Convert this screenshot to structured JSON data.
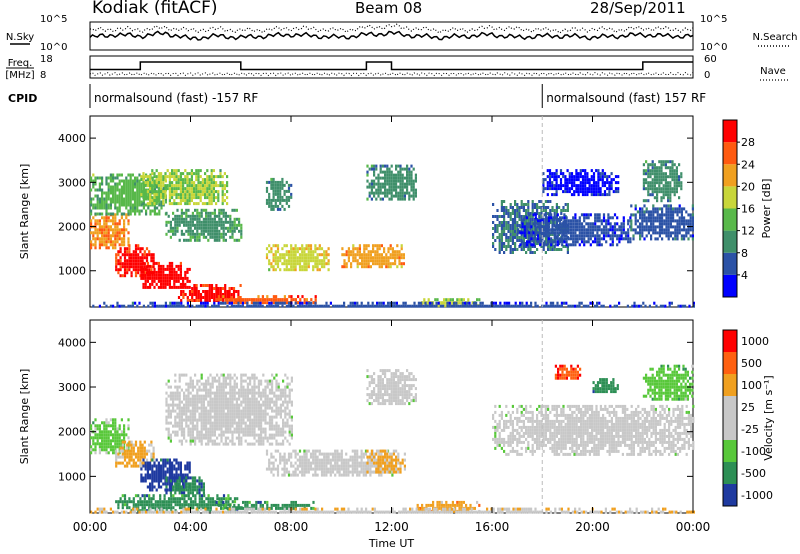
{
  "header": {
    "station": "Kodiak (fitACF)",
    "beam": "Beam 08",
    "date": "28/Sep/2011"
  },
  "colors": {
    "power": [
      "#0000ff",
      "#2b52a6",
      "#3f8f6a",
      "#58b84a",
      "#c8d63a",
      "#f0a020",
      "#ff5a10",
      "#ff0000"
    ],
    "velocity": [
      "#1f3aa0",
      "#2d8f55",
      "#58c83a",
      "#c8c8c8",
      "#c8c8c8",
      "#f0a020",
      "#ff6010",
      "#ff0000"
    ]
  },
  "chart_data": [
    {
      "type": "line",
      "name": "N.Sky / N.Search panel",
      "ylabel_left": "N.Sky",
      "ylabel_right": "N.Search",
      "yticks_left": [
        "10^5",
        "10^0"
      ],
      "yticks_right": [
        "10^5",
        "10^0"
      ],
      "x_hours": [
        0,
        1,
        2,
        3,
        4,
        5,
        6,
        7,
        8,
        9,
        10,
        11,
        12,
        13,
        14,
        15,
        16,
        17,
        18,
        19,
        20,
        21,
        22,
        23,
        24
      ],
      "series": [
        {
          "name": "N.Sky",
          "style": "solid",
          "values": [
            0.45,
            0.55,
            0.5,
            0.6,
            0.4,
            0.5,
            0.45,
            0.5,
            0.55,
            0.5,
            0.45,
            0.55,
            0.6,
            0.5,
            0.45,
            0.5,
            0.55,
            0.45,
            0.5,
            0.5,
            0.45,
            0.5,
            0.55,
            0.5,
            0.5
          ]
        },
        {
          "name": "N.Search",
          "style": "dotted",
          "values": [
            0.7,
            0.75,
            0.72,
            0.8,
            0.7,
            0.75,
            0.7,
            0.72,
            0.78,
            0.75,
            0.7,
            0.8,
            0.85,
            0.75,
            0.7,
            0.72,
            0.8,
            0.75,
            0.72,
            0.7,
            0.75,
            0.72,
            0.78,
            0.75,
            0.72
          ]
        }
      ]
    },
    {
      "type": "line",
      "name": "Freq / Nave panel",
      "ylabel_left": "Freq. [MHz]",
      "ylabel_right": "Nave",
      "yticks_left": [
        "18",
        "8"
      ],
      "yticks_right": [
        "60",
        "0"
      ],
      "ylim_freq": [
        8,
        18
      ],
      "x_hours": [
        0,
        1,
        2,
        3,
        4,
        5,
        6,
        7,
        8,
        9,
        10,
        11,
        12,
        13,
        14,
        15,
        16,
        17,
        18,
        19,
        20,
        21,
        22,
        23,
        24
      ],
      "series": [
        {
          "name": "Freq",
          "style": "solid",
          "values": [
            12,
            12,
            16,
            16,
            16,
            16,
            12,
            12,
            12,
            12,
            12,
            16,
            12,
            12,
            12,
            12,
            12,
            12,
            12,
            12,
            12,
            12,
            16,
            16,
            16
          ]
        },
        {
          "name": "Nave",
          "style": "dotted",
          "values": [
            8,
            8.5,
            8,
            8.5,
            8,
            8.5,
            8,
            8.5,
            8,
            8.5,
            8,
            8.5,
            8,
            8.5,
            8,
            8.5,
            8,
            8.5,
            8,
            8.5,
            8,
            8.5,
            8,
            8.5,
            8
          ]
        }
      ]
    },
    {
      "type": "heatmap",
      "name": "CPID",
      "label": "CPID",
      "segments": [
        {
          "label": "normalsound (fast) -157 RF",
          "start_hour": 0,
          "end_hour": 18
        },
        {
          "label": "normalsound (fast) 157 RF",
          "start_hour": 18,
          "end_hour": 24
        }
      ]
    },
    {
      "type": "heatmap",
      "name": "Power",
      "ylabel": "Slant Range [km]",
      "yticks": [
        1000,
        2000,
        3000,
        4000
      ],
      "ylim": [
        180,
        4500
      ],
      "colorbar_label": "Power [dB]",
      "colorbar_ticks": [
        4,
        8,
        12,
        16,
        20,
        24,
        28
      ],
      "colorbar_range": [
        0,
        32
      ],
      "blobs": [
        {
          "t0": 0.0,
          "t1": 1.5,
          "r0": 1500,
          "r1": 2300,
          "level": 0.75
        },
        {
          "t0": 1.0,
          "t1": 2.5,
          "r0": 900,
          "r1": 1600,
          "level": 0.9
        },
        {
          "t0": 2.0,
          "t1": 4.0,
          "r0": 600,
          "r1": 1200,
          "level": 0.95
        },
        {
          "t0": 3.5,
          "t1": 6.0,
          "r0": 300,
          "r1": 700,
          "level": 0.9
        },
        {
          "t0": 5.0,
          "t1": 9.0,
          "r0": 250,
          "r1": 450,
          "level": 0.8
        },
        {
          "t0": 0.0,
          "t1": 3.0,
          "r0": 2300,
          "r1": 3200,
          "level": 0.4
        },
        {
          "t0": 2.0,
          "t1": 5.5,
          "r0": 2500,
          "r1": 3300,
          "level": 0.5
        },
        {
          "t0": 3.0,
          "t1": 6.0,
          "r0": 1700,
          "r1": 2400,
          "level": 0.35
        },
        {
          "t0": 7.0,
          "t1": 9.5,
          "r0": 1000,
          "r1": 1600,
          "level": 0.6
        },
        {
          "t0": 10.0,
          "t1": 12.5,
          "r0": 1100,
          "r1": 1600,
          "level": 0.7
        },
        {
          "t0": 11.0,
          "t1": 13.0,
          "r0": 2600,
          "r1": 3400,
          "level": 0.3
        },
        {
          "t0": 7.0,
          "t1": 8.0,
          "r0": 2400,
          "r1": 3100,
          "level": 0.3
        },
        {
          "t0": 13.0,
          "t1": 15.5,
          "r0": 220,
          "r1": 380,
          "level": 0.55
        },
        {
          "t0": 16.0,
          "t1": 19.0,
          "r0": 1400,
          "r1": 2600,
          "level": 0.25
        },
        {
          "t0": 17.0,
          "t1": 21.5,
          "r0": 1600,
          "r1": 2300,
          "level": 0.15
        },
        {
          "t0": 18.0,
          "t1": 21.0,
          "r0": 2700,
          "r1": 3300,
          "level": 0.1
        },
        {
          "t0": 21.5,
          "t1": 24.0,
          "r0": 1700,
          "r1": 2500,
          "level": 0.2
        },
        {
          "t0": 22.0,
          "t1": 23.5,
          "r0": 2600,
          "r1": 3500,
          "level": 0.3
        },
        {
          "t0": 0.0,
          "t1": 24.0,
          "r0": 180,
          "r1": 300,
          "level": 0.15
        }
      ]
    },
    {
      "type": "heatmap",
      "name": "Velocity",
      "ylabel": "Slant Range [km]",
      "yticks": [
        1000,
        2000,
        3000,
        4000
      ],
      "ylim": [
        180,
        4500
      ],
      "colorbar_label": "Velocity [m s^-1]",
      "colorbar_ticks": [
        1000,
        500,
        100,
        25,
        -25,
        -100,
        -500,
        -1000
      ],
      "blobs": [
        {
          "t0": 0.0,
          "t1": 1.5,
          "r0": 1500,
          "r1": 2300,
          "level": 0.35
        },
        {
          "t0": 1.0,
          "t1": 2.5,
          "r0": 1200,
          "r1": 1800,
          "level": 0.65
        },
        {
          "t0": 2.0,
          "t1": 4.0,
          "r0": 700,
          "r1": 1400,
          "level": 0.05
        },
        {
          "t0": 3.0,
          "t1": 4.5,
          "r0": 600,
          "r1": 1000,
          "level": 0.15
        },
        {
          "t0": 1.0,
          "t1": 6.0,
          "r0": 250,
          "r1": 600,
          "level": 0.2
        },
        {
          "t0": 5.0,
          "t1": 9.0,
          "r0": 250,
          "r1": 450,
          "level": 0.2
        },
        {
          "t0": 3.0,
          "t1": 8.0,
          "r0": 1700,
          "r1": 3300,
          "level": 0.45
        },
        {
          "t0": 7.0,
          "t1": 12.0,
          "r0": 1000,
          "r1": 1600,
          "level": 0.45
        },
        {
          "t0": 11.0,
          "t1": 12.5,
          "r0": 1100,
          "r1": 1600,
          "level": 0.65
        },
        {
          "t0": 11.0,
          "t1": 13.0,
          "r0": 2600,
          "r1": 3400,
          "level": 0.45
        },
        {
          "t0": 13.0,
          "t1": 15.5,
          "r0": 220,
          "r1": 450,
          "level": 0.7
        },
        {
          "t0": 16.0,
          "t1": 24.0,
          "r0": 1500,
          "r1": 2600,
          "level": 0.45
        },
        {
          "t0": 18.5,
          "t1": 19.5,
          "r0": 3200,
          "r1": 3500,
          "level": 0.85
        },
        {
          "t0": 20.0,
          "t1": 21.0,
          "r0": 2900,
          "r1": 3200,
          "level": 0.2
        },
        {
          "t0": 22.0,
          "t1": 24.0,
          "r0": 2700,
          "r1": 3500,
          "level": 0.3
        },
        {
          "t0": 0.0,
          "t1": 24.0,
          "r0": 180,
          "r1": 300,
          "level": 0.6
        }
      ]
    }
  ],
  "xaxis": {
    "label": "Time UT",
    "ticks": [
      "00:00",
      "04:00",
      "08:00",
      "12:00",
      "16:00",
      "20:00",
      "00:00"
    ],
    "tick_hours": [
      0,
      4,
      8,
      12,
      16,
      20,
      24
    ],
    "range_hours": [
      0,
      24
    ],
    "marker_hour": 18
  }
}
